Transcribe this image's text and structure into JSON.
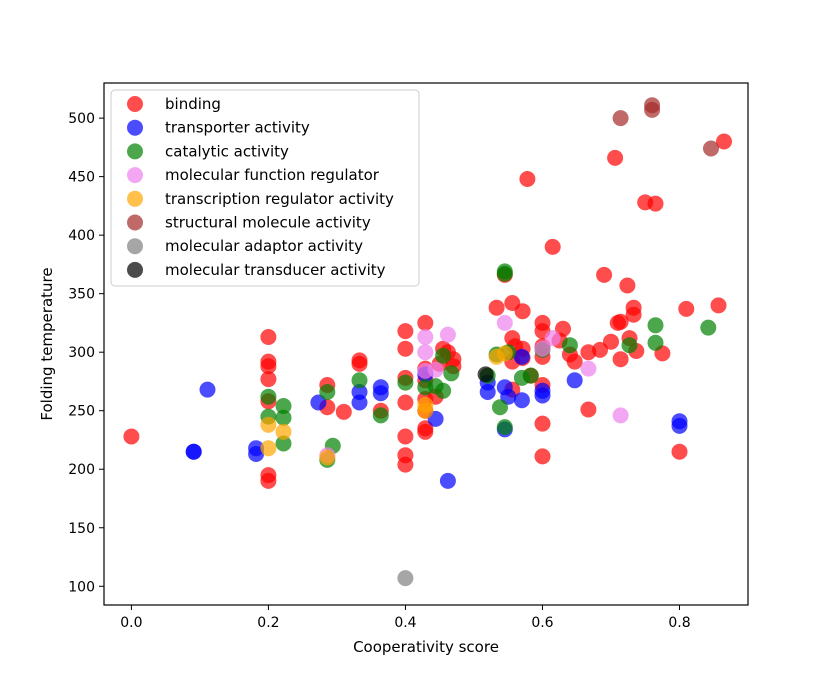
{
  "chart_data": {
    "type": "scatter",
    "title": "",
    "xlabel": "Cooperativity score",
    "ylabel": "Folding temperature",
    "xlim": [
      -0.04,
      0.9
    ],
    "ylim": [
      84,
      530
    ],
    "xticks": [
      0.0,
      0.2,
      0.4,
      0.6,
      0.8
    ],
    "xtick_labels": [
      "0.0",
      "0.2",
      "0.4",
      "0.6",
      "0.8"
    ],
    "yticks": [
      100,
      150,
      200,
      250,
      300,
      350,
      400,
      450,
      500
    ],
    "ytick_labels": [
      "100",
      "150",
      "200",
      "250",
      "300",
      "350",
      "400",
      "450",
      "500"
    ],
    "grid": false,
    "legend_position": "top-left",
    "series": [
      {
        "name": "binding",
        "color": "#ff0000",
        "points": [
          [
            0.0,
            228
          ],
          [
            0.2,
            313
          ],
          [
            0.2,
            292
          ],
          [
            0.2,
            288
          ],
          [
            0.2,
            277
          ],
          [
            0.2,
            258
          ],
          [
            0.2,
            195
          ],
          [
            0.2,
            190
          ],
          [
            0.286,
            272
          ],
          [
            0.286,
            253
          ],
          [
            0.31,
            249
          ],
          [
            0.333,
            293
          ],
          [
            0.333,
            290
          ],
          [
            0.364,
            250
          ],
          [
            0.4,
            318
          ],
          [
            0.4,
            303
          ],
          [
            0.4,
            278
          ],
          [
            0.4,
            257
          ],
          [
            0.4,
            228
          ],
          [
            0.4,
            212
          ],
          [
            0.4,
            204
          ],
          [
            0.429,
            325
          ],
          [
            0.429,
            286
          ],
          [
            0.429,
            276
          ],
          [
            0.429,
            260
          ],
          [
            0.429,
            250
          ],
          [
            0.429,
            235
          ],
          [
            0.429,
            232
          ],
          [
            0.444,
            262
          ],
          [
            0.45,
            290
          ],
          [
            0.455,
            303
          ],
          [
            0.462,
            300
          ],
          [
            0.47,
            294
          ],
          [
            0.47,
            288
          ],
          [
            0.533,
            338
          ],
          [
            0.545,
            366
          ],
          [
            0.556,
            342
          ],
          [
            0.556,
            312
          ],
          [
            0.556,
            292
          ],
          [
            0.556,
            268
          ],
          [
            0.56,
            305
          ],
          [
            0.571,
            335
          ],
          [
            0.571,
            303
          ],
          [
            0.571,
            295
          ],
          [
            0.578,
            448
          ],
          [
            0.583,
            280
          ],
          [
            0.6,
            325
          ],
          [
            0.6,
            318
          ],
          [
            0.6,
            305
          ],
          [
            0.6,
            296
          ],
          [
            0.6,
            272
          ],
          [
            0.6,
            239
          ],
          [
            0.6,
            211
          ],
          [
            0.615,
            390
          ],
          [
            0.625,
            310
          ],
          [
            0.63,
            320
          ],
          [
            0.64,
            298
          ],
          [
            0.647,
            292
          ],
          [
            0.667,
            300
          ],
          [
            0.667,
            251
          ],
          [
            0.684,
            302
          ],
          [
            0.69,
            366
          ],
          [
            0.7,
            309
          ],
          [
            0.706,
            466
          ],
          [
            0.71,
            325
          ],
          [
            0.714,
            326
          ],
          [
            0.714,
            294
          ],
          [
            0.724,
            357
          ],
          [
            0.727,
            312
          ],
          [
            0.733,
            338
          ],
          [
            0.733,
            332
          ],
          [
            0.737,
            301
          ],
          [
            0.75,
            428
          ],
          [
            0.765,
            427
          ],
          [
            0.775,
            299
          ],
          [
            0.8,
            215
          ],
          [
            0.81,
            337
          ],
          [
            0.857,
            340
          ],
          [
            0.865,
            480
          ]
        ]
      },
      {
        "name": "transporter activity",
        "color": "#0000ff",
        "points": [
          [
            0.091,
            215
          ],
          [
            0.091,
            215
          ],
          [
            0.111,
            268
          ],
          [
            0.182,
            218
          ],
          [
            0.182,
            213
          ],
          [
            0.273,
            257
          ],
          [
            0.333,
            266
          ],
          [
            0.333,
            257
          ],
          [
            0.364,
            270
          ],
          [
            0.364,
            265
          ],
          [
            0.429,
            281
          ],
          [
            0.444,
            243
          ],
          [
            0.462,
            190
          ],
          [
            0.52,
            274
          ],
          [
            0.52,
            266
          ],
          [
            0.545,
            270
          ],
          [
            0.545,
            234
          ],
          [
            0.55,
            262
          ],
          [
            0.57,
            296
          ],
          [
            0.57,
            259
          ],
          [
            0.6,
            267
          ],
          [
            0.6,
            263
          ],
          [
            0.647,
            276
          ],
          [
            0.8,
            241
          ],
          [
            0.8,
            237
          ]
        ]
      },
      {
        "name": "catalytic activity",
        "color": "#008000",
        "points": [
          [
            0.2,
            262
          ],
          [
            0.2,
            245
          ],
          [
            0.222,
            254
          ],
          [
            0.222,
            244
          ],
          [
            0.222,
            222
          ],
          [
            0.286,
            266
          ],
          [
            0.286,
            208
          ],
          [
            0.294,
            220
          ],
          [
            0.333,
            276
          ],
          [
            0.364,
            246
          ],
          [
            0.4,
            274
          ],
          [
            0.429,
            270
          ],
          [
            0.444,
            271
          ],
          [
            0.455,
            297
          ],
          [
            0.455,
            267
          ],
          [
            0.467,
            282
          ],
          [
            0.52,
            280
          ],
          [
            0.533,
            298
          ],
          [
            0.538,
            253
          ],
          [
            0.545,
            369
          ],
          [
            0.545,
            367
          ],
          [
            0.545,
            236
          ],
          [
            0.55,
            300
          ],
          [
            0.57,
            278
          ],
          [
            0.583,
            280
          ],
          [
            0.6,
            302
          ],
          [
            0.64,
            306
          ],
          [
            0.727,
            306
          ],
          [
            0.765,
            323
          ],
          [
            0.765,
            308
          ],
          [
            0.842,
            321
          ]
        ]
      },
      {
        "name": "molecular function regulator",
        "color": "#ee82ee",
        "points": [
          [
            0.286,
            212
          ],
          [
            0.429,
            313
          ],
          [
            0.429,
            300
          ],
          [
            0.429,
            284
          ],
          [
            0.444,
            285
          ],
          [
            0.462,
            315
          ],
          [
            0.545,
            325
          ],
          [
            0.6,
            303
          ],
          [
            0.615,
            312
          ],
          [
            0.667,
            286
          ],
          [
            0.714,
            246
          ]
        ]
      },
      {
        "name": "transcription regulator activity",
        "color": "#ffa500",
        "points": [
          [
            0.2,
            238
          ],
          [
            0.2,
            218
          ],
          [
            0.222,
            232
          ],
          [
            0.286,
            210
          ],
          [
            0.429,
            255
          ],
          [
            0.429,
            250
          ],
          [
            0.533,
            296
          ],
          [
            0.545,
            299
          ]
        ]
      },
      {
        "name": "structural molecule activity",
        "color": "#a52a2a",
        "points": [
          [
            0.714,
            500
          ],
          [
            0.76,
            511
          ],
          [
            0.76,
            507
          ],
          [
            0.846,
            474
          ]
        ]
      },
      {
        "name": "molecular adaptor activity",
        "color": "#808080",
        "points": [
          [
            0.4,
            107
          ]
        ]
      },
      {
        "name": "molecular transducer activity",
        "color": "#000000",
        "points": [
          [
            0.517,
            281
          ]
        ]
      }
    ]
  }
}
